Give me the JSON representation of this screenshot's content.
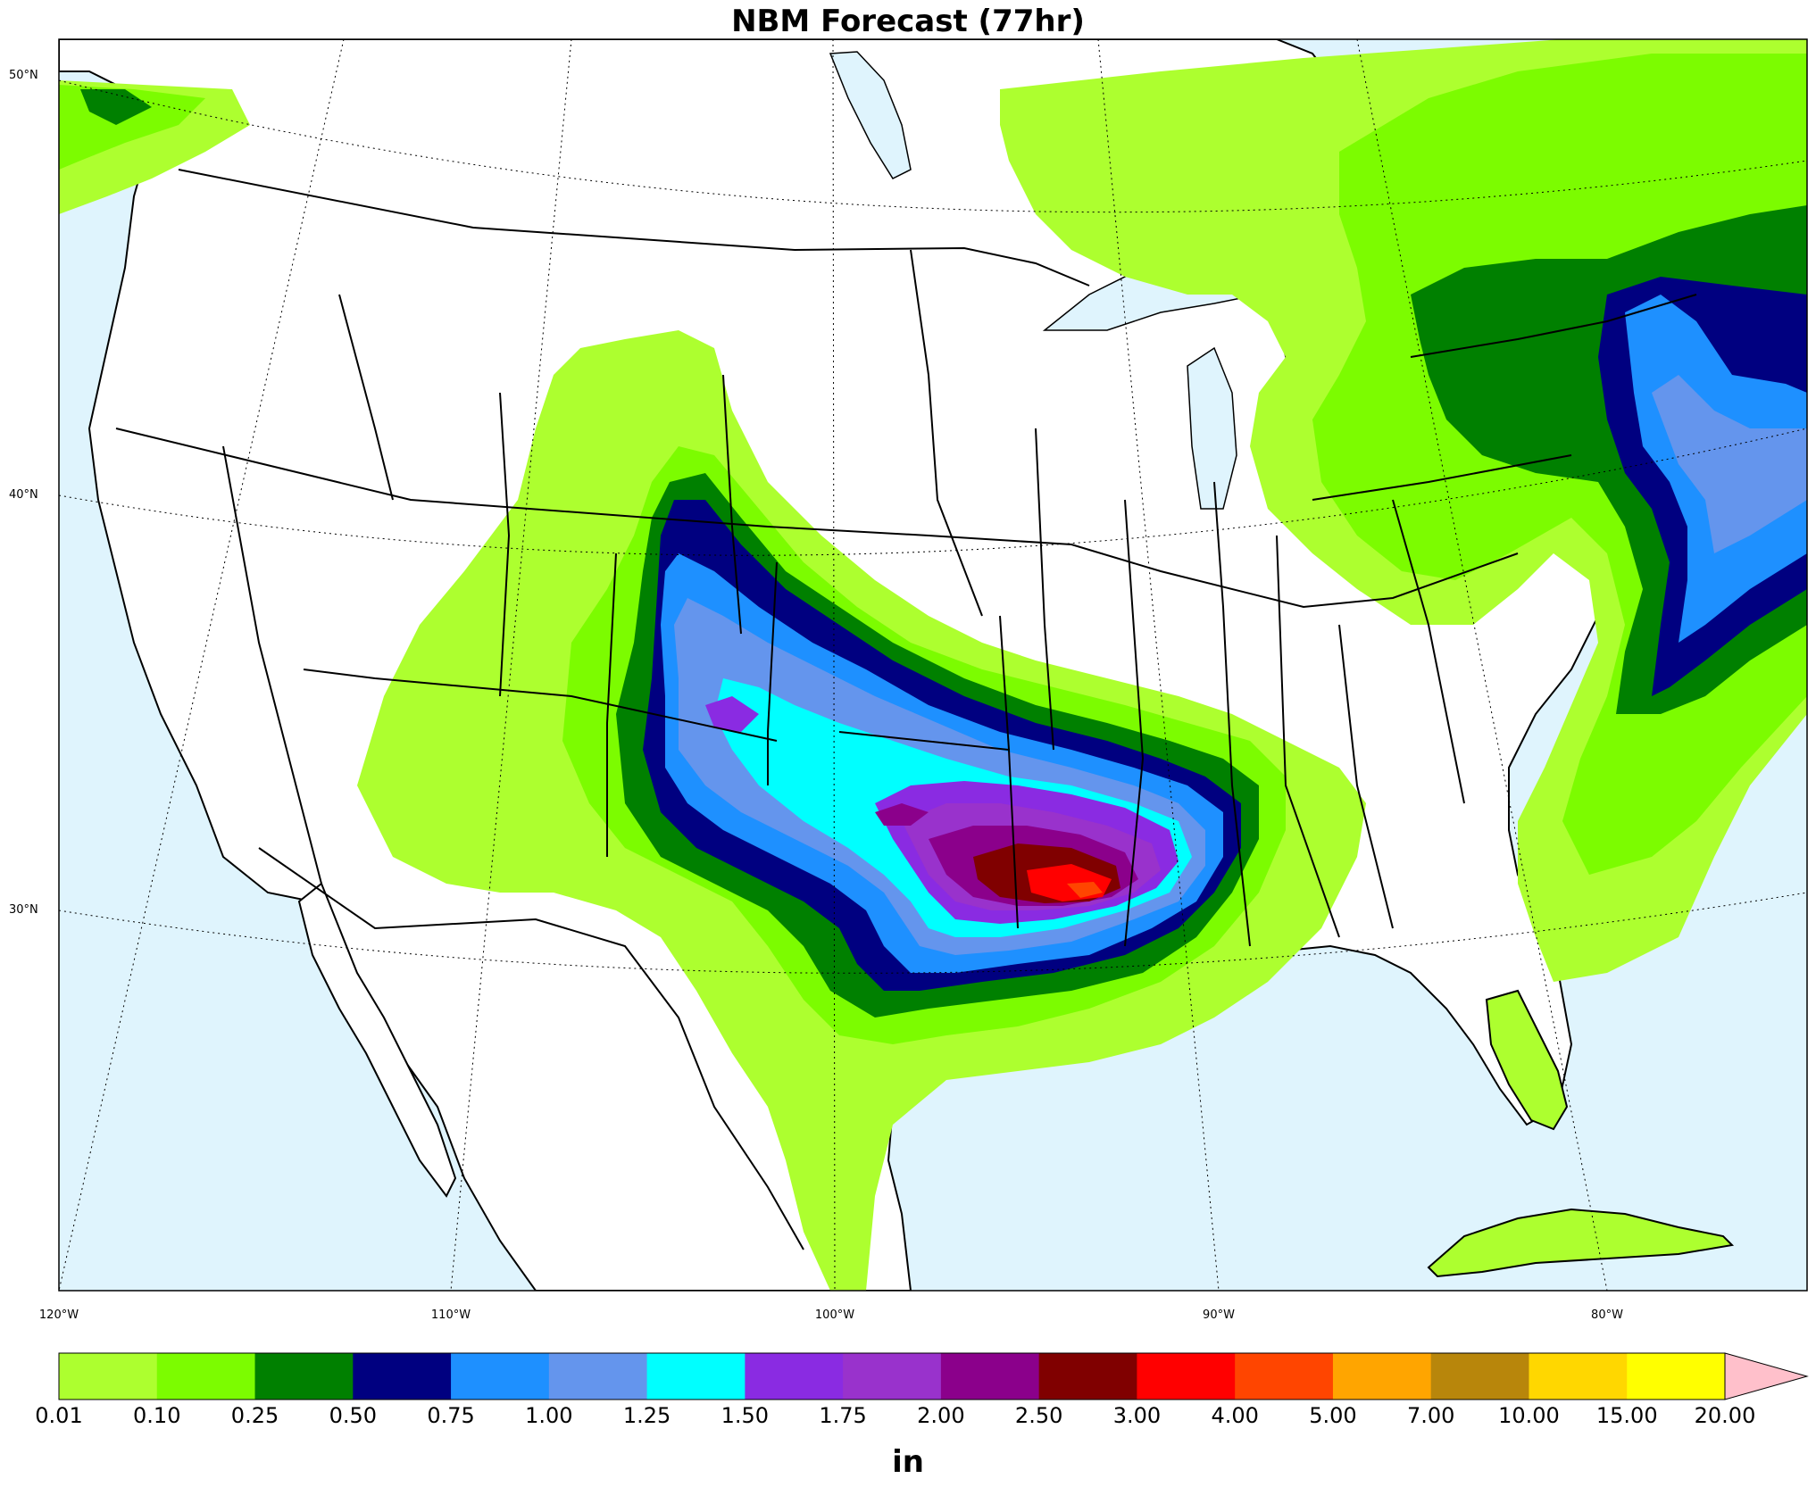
{
  "title": "NBM Forecast (77hr)",
  "map": {
    "lat_labels": [
      "50°N",
      "40°N",
      "30°N"
    ],
    "lon_labels": [
      "120°W",
      "110°W",
      "100°W",
      "90°W",
      "80°W"
    ],
    "ocean_color": "#dff4fd",
    "land_color": "#ffffff"
  },
  "colorbar": {
    "units": "in",
    "ticks": [
      "0.01",
      "0.10",
      "0.25",
      "0.50",
      "0.75",
      "1.00",
      "1.25",
      "1.50",
      "1.75",
      "2.00",
      "2.50",
      "3.00",
      "4.00",
      "5.00",
      "7.00",
      "10.00",
      "15.00",
      "20.00"
    ],
    "colors": [
      "#adff2f",
      "#7cfc00",
      "#008000",
      "#000080",
      "#1e90ff",
      "#6495ed",
      "#00ffff",
      "#8a2be2",
      "#9932cc",
      "#8b008b",
      "#800000",
      "#ff0000",
      "#ff4500",
      "#ffa500",
      "#b8860b",
      "#ffd700",
      "#ffff00"
    ],
    "extend_color": "#ffc0cb"
  }
}
